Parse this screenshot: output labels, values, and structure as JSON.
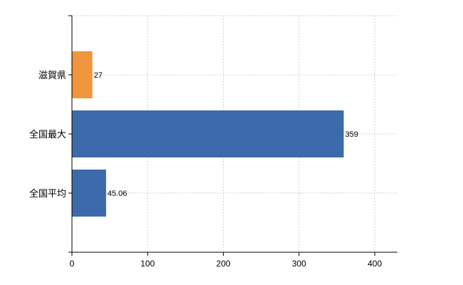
{
  "chart_data": {
    "type": "bar",
    "orientation": "horizontal",
    "categories": [
      "滋賀県",
      "全国最大",
      "全国平均"
    ],
    "values": [
      27,
      359,
      45.06
    ],
    "value_labels": [
      "27",
      "359",
      "45.06"
    ],
    "bar_colors": [
      "#F0963C",
      "#3C69AA",
      "#3C69AA"
    ],
    "title": "",
    "xlabel": "",
    "ylabel": "",
    "xlim": [
      0,
      430
    ],
    "xticks": [
      0,
      100,
      200,
      300,
      400
    ],
    "xtick_labels": [
      "0",
      "100",
      "200",
      "300",
      "400"
    ],
    "grid": true
  }
}
